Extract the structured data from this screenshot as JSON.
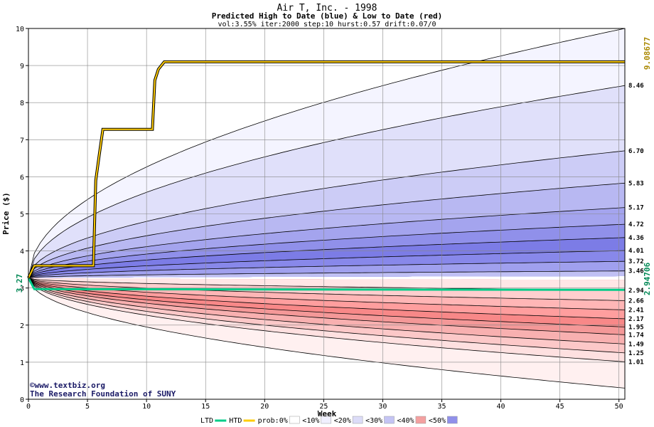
{
  "chart_data": {
    "type": "area",
    "title": "Air T, Inc. - 1998",
    "subtitle": "Predicted High to Date (blue) &  Low to Date (red)",
    "params": "vol:3.55% iter:2000 step:10 hurst:0.57 drift:0.07/0",
    "xlabel": "Week",
    "ylabel": "Price ($)",
    "xlim": [
      0,
      50.5
    ],
    "ylim": [
      0,
      10
    ],
    "x_ticks": [
      0,
      5,
      10,
      15,
      20,
      25,
      30,
      35,
      40,
      45,
      50
    ],
    "y_ticks": [
      0,
      1,
      2,
      3,
      4,
      5,
      6,
      7,
      8,
      9,
      10
    ],
    "grid": true,
    "start_price": 3.27,
    "start_label": "3.27",
    "high_to_date_label": "9.08677",
    "low_to_date_label": "2.94706",
    "upper_bands": [
      {
        "end": 10.0,
        "label": ""
      },
      {
        "end": 8.46,
        "label": "8.46"
      },
      {
        "end": 6.7,
        "label": "6.70"
      },
      {
        "end": 5.83,
        "label": "5.83"
      },
      {
        "end": 5.17,
        "label": "5.17"
      },
      {
        "end": 4.72,
        "label": "4.72"
      },
      {
        "end": 4.36,
        "label": "4.36"
      },
      {
        "end": 4.01,
        "label": "4.01"
      },
      {
        "end": 3.72,
        "label": "3.72"
      },
      {
        "end": 3.46,
        "label": "3.46"
      }
    ],
    "lower_bands": [
      {
        "end": 2.94,
        "label": "2.94"
      },
      {
        "end": 2.66,
        "label": "2.66"
      },
      {
        "end": 2.41,
        "label": "2.41"
      },
      {
        "end": 2.17,
        "label": "2.17"
      },
      {
        "end": 1.95,
        "label": "1.95"
      },
      {
        "end": 1.74,
        "label": "1.74"
      },
      {
        "end": 1.49,
        "label": "1.49"
      },
      {
        "end": 1.25,
        "label": "1.25"
      },
      {
        "end": 1.01,
        "label": "1.01"
      },
      {
        "end": 0.3,
        "label": ""
      }
    ],
    "htd_series": [
      {
        "x": 0,
        "y": 3.27
      },
      {
        "x": 0.5,
        "y": 3.6
      },
      {
        "x": 5.5,
        "y": 3.6
      },
      {
        "x": 5.7,
        "y": 5.9
      },
      {
        "x": 6.0,
        "y": 6.6
      },
      {
        "x": 6.3,
        "y": 7.28
      },
      {
        "x": 10.5,
        "y": 7.28
      },
      {
        "x": 10.7,
        "y": 8.6
      },
      {
        "x": 11.0,
        "y": 8.9
      },
      {
        "x": 11.5,
        "y": 9.1
      },
      {
        "x": 50.5,
        "y": 9.1
      }
    ],
    "ltd_series": [
      {
        "x": 0,
        "y": 3.27
      },
      {
        "x": 0.5,
        "y": 2.97
      },
      {
        "x": 50.5,
        "y": 2.95
      }
    ],
    "colors": {
      "htd": "#ffcc00",
      "htd_edge": "#000000",
      "ltd": "#00cc88",
      "upper_fill": [
        "#f4f4ff",
        "#e0e0fa",
        "#ccccf6",
        "#b8b8f2",
        "#a4a4ee",
        "#9090ea",
        "#7c7ce6",
        "#8888ea",
        "#a0a0ee",
        "#c0c0f4"
      ],
      "lower_fill": [
        "#ffe6e6",
        "#ffcece",
        "#ffb6b6",
        "#ff9e9e",
        "#f88888",
        "#f49898",
        "#f8b0b0",
        "#fcc8c8",
        "#fee0e0",
        "#fff0f0"
      ]
    },
    "credit_lines": [
      "©www.textbiz.org",
      "The Research Foundation of SUNY"
    ],
    "legend": [
      {
        "label": "LTD",
        "swatch": "#00cc88",
        "kind": "line"
      },
      {
        "label": "HTD",
        "swatch": "#ffcc00",
        "kind": "line"
      },
      {
        "label": "prob:0%",
        "swatch": "#ffffff",
        "kind": "box"
      },
      {
        "label": "<10%",
        "swatch": "#f0f0ff",
        "kind": "box"
      },
      {
        "label": "<20%",
        "swatch": "#dcdcf8",
        "kind": "box"
      },
      {
        "label": "<30%",
        "swatch": "#c4c4f4",
        "kind": "box"
      },
      {
        "label": "<40%",
        "swatch": "#f4a0a0",
        "kind": "box"
      },
      {
        "label": "<50%",
        "swatch": "#9090ea",
        "kind": "box"
      }
    ]
  }
}
